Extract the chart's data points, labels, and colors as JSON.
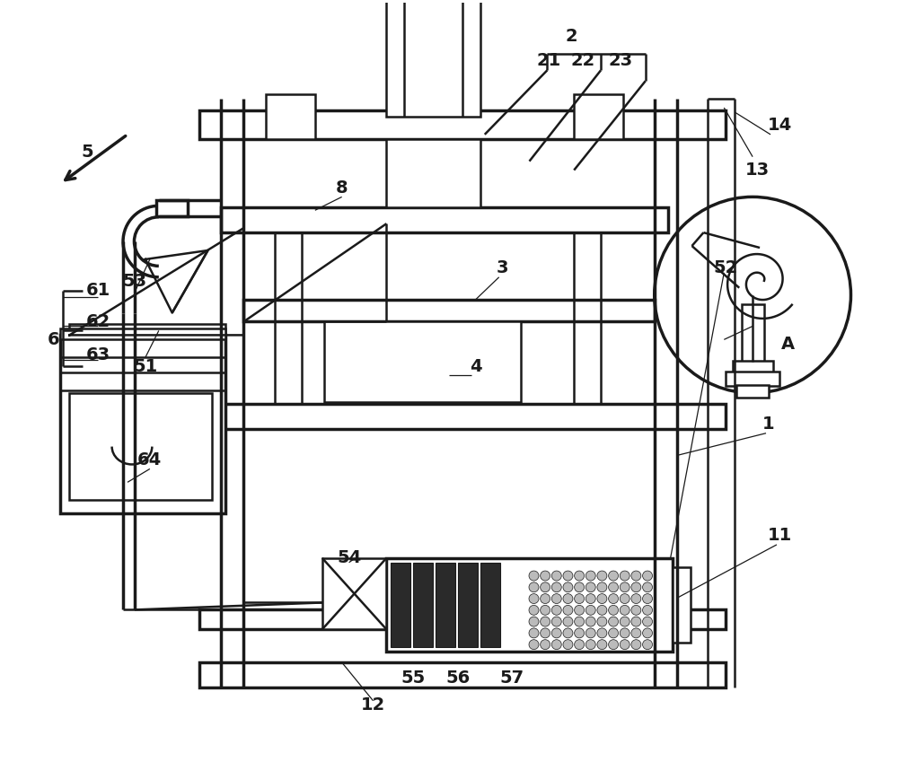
{
  "bg_color": "#ffffff",
  "line_color": "#1a1a1a",
  "lw": 1.8,
  "lw2": 2.5,
  "fig_width": 10.0,
  "fig_height": 8.68
}
